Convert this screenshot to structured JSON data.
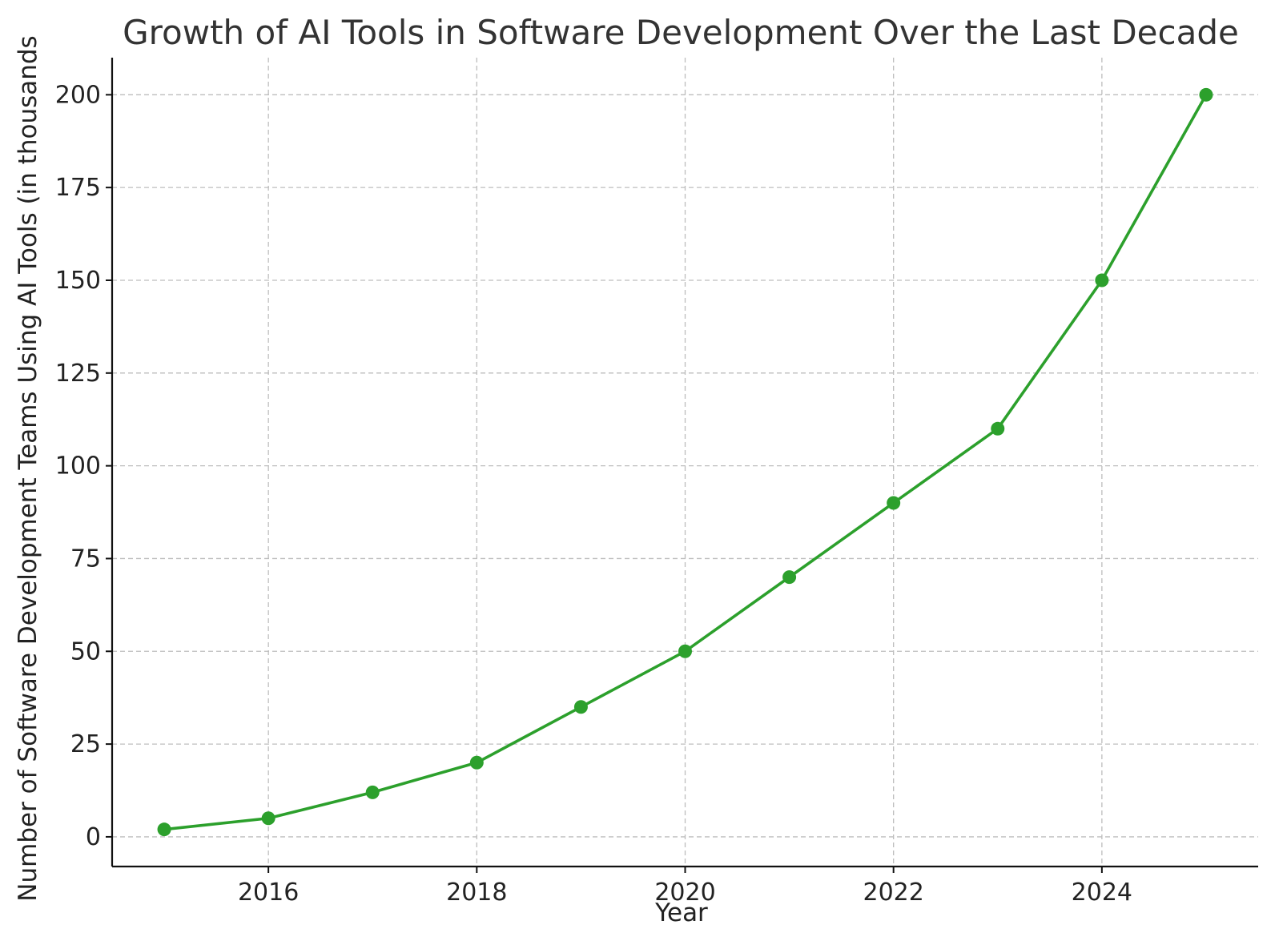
{
  "colors": {
    "series": "#2ca02c",
    "grid": "#bdbdbd",
    "axis": "#111111",
    "text": "#222222"
  },
  "chart_data": {
    "type": "line",
    "title": "Growth of AI Tools in Software Development Over the Last Decade",
    "xlabel": "Year",
    "ylabel": "Number of Software Development Teams Using AI Tools (in thousands",
    "x": [
      2015,
      2016,
      2017,
      2018,
      2019,
      2020,
      2021,
      2022,
      2023,
      2024,
      2025
    ],
    "series": [
      {
        "values": [
          2,
          5,
          12,
          20,
          35,
          50,
          70,
          90,
          110,
          150,
          200
        ],
        "color": "#2ca02c",
        "marker": "circle"
      }
    ],
    "xlim": [
      2014.5,
      2025.5
    ],
    "ylim": [
      -8,
      210
    ],
    "xticks": [
      2016,
      2018,
      2020,
      2022,
      2024
    ],
    "yticks": [
      0,
      25,
      50,
      75,
      100,
      125,
      150,
      175,
      200
    ],
    "grid": true
  }
}
